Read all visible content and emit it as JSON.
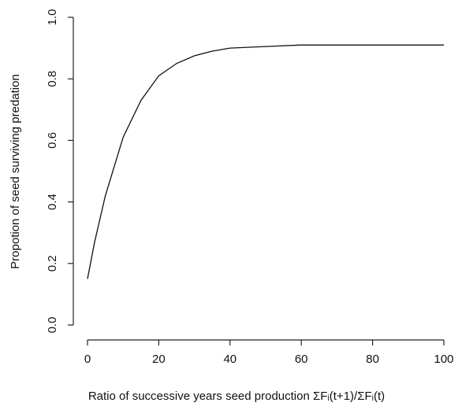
{
  "chart_data": {
    "type": "line",
    "x_label": "Ratio of successive years seed production ΣFᵢ(t+1)/ΣFᵢ(t)",
    "y_label": "Propotion of seed surviving predation",
    "x": [
      0,
      2,
      5,
      10,
      15,
      20,
      25,
      30,
      35,
      40,
      50,
      60,
      70,
      80,
      90,
      100
    ],
    "series": [
      {
        "color": "#111111",
        "values": [
          0.15,
          0.27,
          0.42,
          0.61,
          0.73,
          0.81,
          0.85,
          0.875,
          0.89,
          0.9,
          0.905,
          0.91,
          0.91,
          0.91,
          0.91,
          0.91
        ]
      }
    ],
    "xlim": [
      0,
      100
    ],
    "ylim": [
      0,
      1
    ],
    "xticks": [
      0,
      20,
      40,
      60,
      80,
      100
    ],
    "yticks": [
      {
        "value": 0,
        "label": "0.0"
      },
      {
        "value": 0.2,
        "label": "0.2"
      },
      {
        "value": 0.4,
        "label": "0.4"
      },
      {
        "value": 0.6,
        "label": "0.6"
      },
      {
        "value": 0.8,
        "label": "0.8"
      },
      {
        "value": 1,
        "label": "1.0"
      }
    ]
  }
}
